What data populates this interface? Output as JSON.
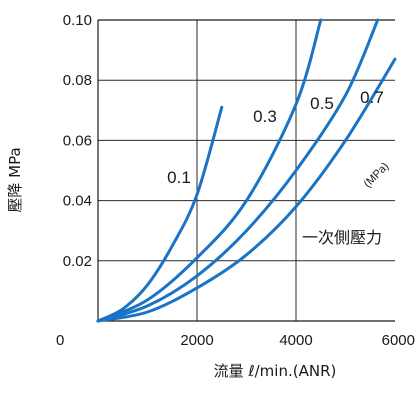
{
  "chart_data": {
    "type": "line",
    "title": "",
    "xlabel": "流量 ℓ/min.(ANR)",
    "ylabel": "壓降 MPa",
    "xlim": [
      0,
      6000
    ],
    "ylim": [
      0,
      0.1
    ],
    "x_ticks": [
      "0",
      "2000",
      "4000",
      "6000"
    ],
    "y_ticks": [
      "0.02",
      "0.04",
      "0.06",
      "0.08",
      "0.10"
    ],
    "grid": true,
    "series": [
      {
        "name": "0.1",
        "color": "#1a73c4",
        "x": [
          0,
          500,
          1000,
          1500,
          2000,
          2500
        ],
        "y": [
          0,
          0.004,
          0.012,
          0.025,
          0.042,
          0.071
        ]
      },
      {
        "name": "0.3",
        "color": "#1a73c4",
        "x": [
          0,
          1000,
          2000,
          3000,
          4000,
          4500
        ],
        "y": [
          0,
          0.007,
          0.021,
          0.04,
          0.072,
          0.1
        ]
      },
      {
        "name": "0.5",
        "color": "#1a73c4",
        "x": [
          0,
          1000,
          2000,
          3000,
          4000,
          5000,
          5650
        ],
        "y": [
          0,
          0.005,
          0.015,
          0.03,
          0.05,
          0.075,
          0.1
        ]
      },
      {
        "name": "0.7",
        "color": "#1a73c4",
        "x": [
          0,
          1000,
          2000,
          3000,
          4000,
          5000,
          6000
        ],
        "y": [
          0,
          0.003,
          0.011,
          0.022,
          0.038,
          0.06,
          0.087
        ]
      }
    ],
    "annotations": {
      "unit": "(MPa)",
      "primary_pressure": "一次側壓力"
    }
  }
}
